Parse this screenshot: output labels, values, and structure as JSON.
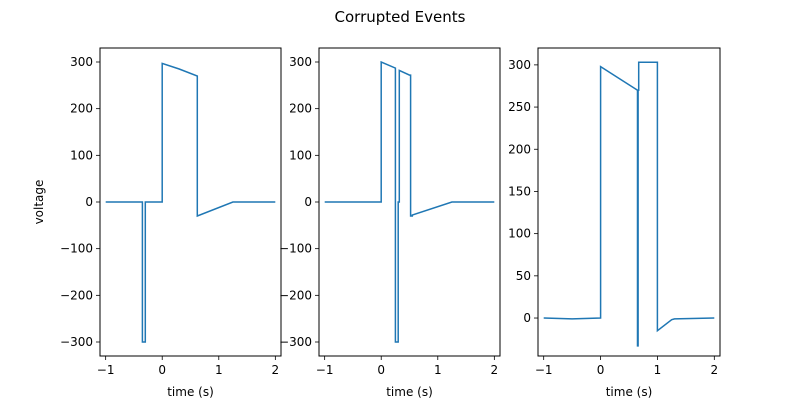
{
  "figure": {
    "title": "Corrupted Events",
    "line_color": "#1f77b4"
  },
  "chart_data": [
    {
      "type": "line",
      "xlabel": "time (s)",
      "ylabel": "voltage",
      "xlim": [
        -1.1,
        2.1
      ],
      "ylim": [
        -330,
        330
      ],
      "xticks": [
        -1,
        0,
        1,
        2
      ],
      "yticks": [
        -300,
        -200,
        -100,
        0,
        100,
        200,
        300
      ],
      "series": [
        {
          "x": [
            -1.0,
            -0.6,
            -0.35,
            -0.35,
            -0.3,
            -0.3,
            -0.25,
            -0.25,
            0.0,
            0.0,
            0.3,
            0.62,
            0.62,
            1.25,
            2.0
          ],
          "y": [
            0,
            0,
            0,
            -300,
            -300,
            0,
            0,
            0,
            0,
            297,
            285,
            270,
            -30,
            0,
            0
          ]
        }
      ]
    },
    {
      "type": "line",
      "xlabel": "time (s)",
      "ylabel": "",
      "xlim": [
        -1.1,
        2.1
      ],
      "ylim": [
        -330,
        330
      ],
      "xticks": [
        -1,
        0,
        1,
        2
      ],
      "yticks": [
        -300,
        -200,
        -100,
        0,
        100,
        200,
        300
      ],
      "series": [
        {
          "x": [
            -1.0,
            0.0,
            0.0,
            0.25,
            0.25,
            0.3,
            0.3,
            0.32,
            0.32,
            0.5,
            0.5,
            0.52,
            0.52,
            0.55,
            0.55,
            1.25,
            2.0
          ],
          "y": [
            0,
            0,
            300,
            287,
            -300,
            -300,
            0,
            0,
            282,
            272,
            272,
            272,
            -30,
            -30,
            -28,
            0,
            0
          ]
        }
      ]
    },
    {
      "type": "line",
      "xlabel": "time (s)",
      "ylabel": "",
      "xlim": [
        -1.1,
        2.1
      ],
      "ylim": [
        -45,
        320
      ],
      "xticks": [
        -1,
        0,
        1,
        2
      ],
      "yticks": [
        0,
        50,
        100,
        150,
        200,
        250,
        300
      ],
      "series": [
        {
          "x": [
            -1.0,
            -0.5,
            0.0,
            0.0,
            0.3,
            0.65,
            0.65,
            0.66,
            0.66,
            0.67,
            0.67,
            1.0,
            1.0,
            1.25,
            1.3,
            2.0
          ],
          "y": [
            0,
            -1,
            0,
            298,
            285,
            270,
            -33,
            -33,
            270,
            270,
            303,
            303,
            -15,
            -2,
            -1,
            0
          ]
        }
      ]
    }
  ]
}
